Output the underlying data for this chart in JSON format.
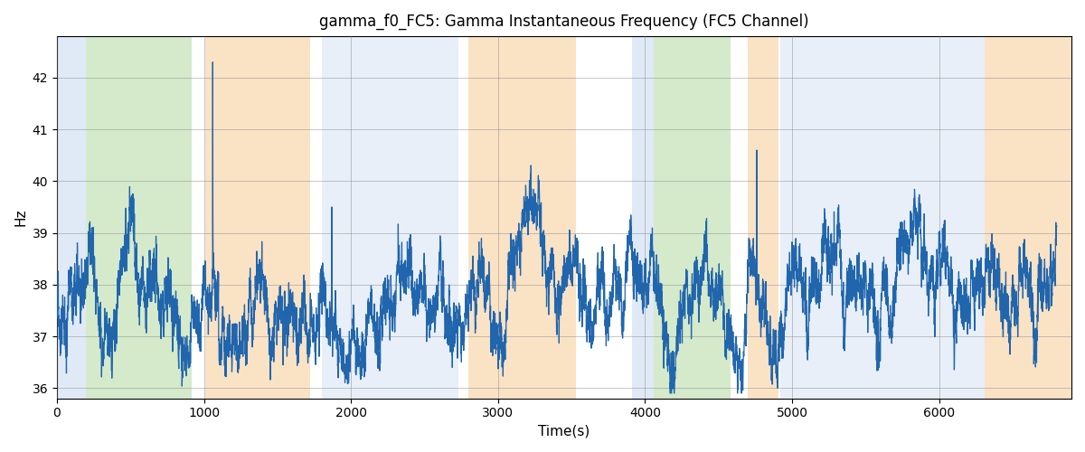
{
  "title": "gamma_f0_FC5: Gamma Instantaneous Frequency (FC5 Channel)",
  "xlabel": "Time(s)",
  "ylabel": "Hz",
  "ylim": [
    35.8,
    42.8
  ],
  "xlim": [
    0,
    6900
  ],
  "line_color": "#2166ac",
  "line_width": 0.9,
  "background_color": "#ffffff",
  "colored_bands": [
    {
      "xmin": 0,
      "xmax": 195,
      "color": "#aec6e8",
      "alpha": 0.38
    },
    {
      "xmin": 195,
      "xmax": 915,
      "color": "#90c978",
      "alpha": 0.38
    },
    {
      "xmin": 1010,
      "xmax": 1720,
      "color": "#f5c080",
      "alpha": 0.45
    },
    {
      "xmin": 1800,
      "xmax": 2730,
      "color": "#aec6e8",
      "alpha": 0.28
    },
    {
      "xmin": 2800,
      "xmax": 3530,
      "color": "#f5c080",
      "alpha": 0.45
    },
    {
      "xmin": 3910,
      "xmax": 4060,
      "color": "#aec6e8",
      "alpha": 0.38
    },
    {
      "xmin": 4060,
      "xmax": 4580,
      "color": "#90c978",
      "alpha": 0.38
    },
    {
      "xmin": 4700,
      "xmax": 4910,
      "color": "#f5c080",
      "alpha": 0.45
    },
    {
      "xmin": 4920,
      "xmax": 6310,
      "color": "#aec6e8",
      "alpha": 0.28
    },
    {
      "xmin": 6310,
      "xmax": 6900,
      "color": "#f5c080",
      "alpha": 0.45
    }
  ],
  "seed": 2023,
  "n_points": 6800,
  "base_freq": 37.8,
  "noise_std": 0.18,
  "walk_std": 0.12
}
